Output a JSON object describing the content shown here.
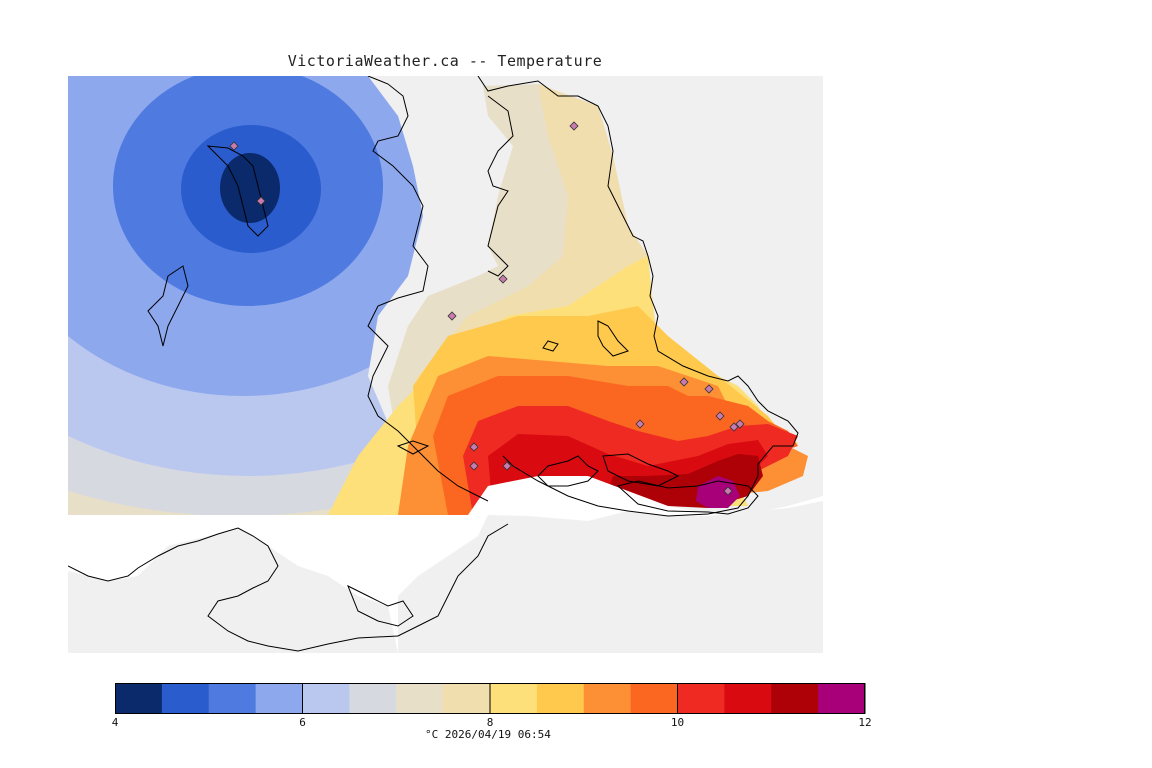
{
  "title": "VictoriaWeather.ca -- Temperature",
  "caption": "°C  2026/04/19 06:54",
  "colorbar": {
    "min": 4,
    "max": 12,
    "step": 0.5,
    "tick_labels": [
      "4",
      "6",
      "8",
      "10",
      "12"
    ],
    "colors": [
      "#0b2a6b",
      "#2a5ccd",
      "#4f7ae0",
      "#8ea8ee",
      "#bac8f0",
      "#d6d9e0",
      "#e8dfc8",
      "#f1deae",
      "#fde07a",
      "#fec94c",
      "#fd8f35",
      "#fb6720",
      "#ee2a22",
      "#d90a10",
      "#ad0007",
      "#a80079"
    ]
  },
  "map": {
    "land_color": "#f0f0f0",
    "water_color": "#ffffff",
    "station_markers": 15
  }
}
